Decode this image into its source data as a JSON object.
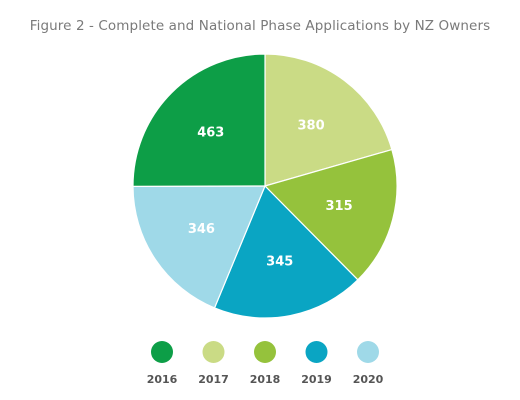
{
  "chart_data": {
    "type": "pie",
    "title": "Figure 2 - Complete and National Phase Applications by NZ Owners",
    "categories": [
      "2016",
      "2017",
      "2018",
      "2019",
      "2020"
    ],
    "values": [
      463,
      380,
      315,
      345,
      346
    ],
    "value_labels": [
      "463",
      "380",
      "315",
      "345",
      "346"
    ],
    "colors": [
      "#0d9e47",
      "#cadb85",
      "#95c23c",
      "#0aa5c3",
      "#9fd9e8"
    ],
    "legend_position": "bottom",
    "slice_order_note": "drawn from 12 o'clock clockwise: 2017, 2018, 2019, 2020, 2016"
  }
}
